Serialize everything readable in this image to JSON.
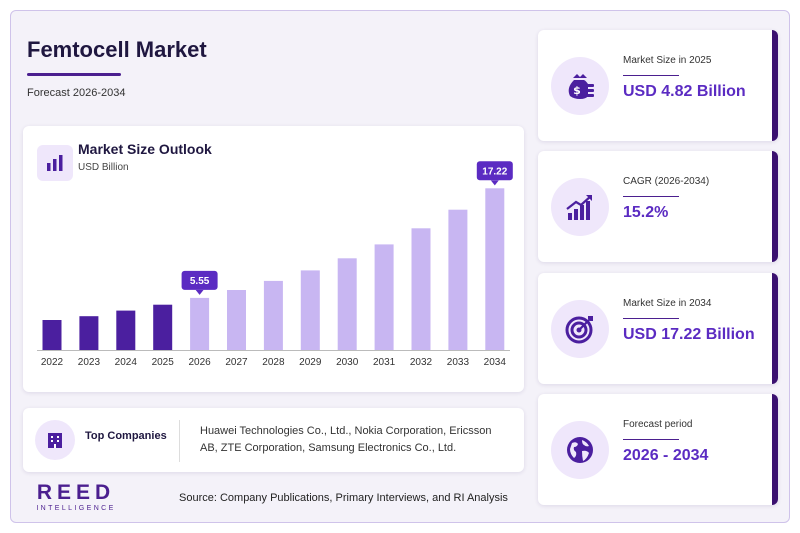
{
  "header": {
    "title": "Femtocell Market",
    "subtitle": "Forecast 2026-2034"
  },
  "chart_card": {
    "title": "Market Size Outlook",
    "unit": "USD Billion",
    "icon": "bar-chart-icon"
  },
  "chart_data": {
    "type": "bar",
    "title": "Market Size Outlook",
    "ylabel": "USD Billion",
    "categories": [
      "2022",
      "2023",
      "2024",
      "2025",
      "2026",
      "2027",
      "2028",
      "2029",
      "2030",
      "2031",
      "2032",
      "2033",
      "2034"
    ],
    "values": [
      3.2,
      3.6,
      4.2,
      4.82,
      5.55,
      6.39,
      7.36,
      8.48,
      9.77,
      11.25,
      12.96,
      14.94,
      17.22
    ],
    "historical_count": 4,
    "callouts": [
      {
        "category": "2026",
        "label": "5.55"
      },
      {
        "category": "2034",
        "label": "17.22"
      }
    ],
    "ylim": [
      0,
      18
    ],
    "grid": false,
    "colors": {
      "historical": "#4b1f9f",
      "forecast": "#c8b6f2",
      "callout": "#5b2bc2"
    }
  },
  "companies": {
    "label": "Top Companies",
    "icon": "building-icon",
    "list": "Huawei Technologies Co., Ltd., Nokia Corporation, Ericsson AB, ZTE Corporation, Samsung Electronics Co., Ltd."
  },
  "stats": [
    {
      "label": "Market Size in 2025",
      "value": "USD 4.82 Billion",
      "icon": "money-bag-icon"
    },
    {
      "label": "CAGR (2026-2034)",
      "value": "15.2%",
      "icon": "growth-chart-icon"
    },
    {
      "label": "Market Size in 2034",
      "value": "USD 17.22 Billion",
      "icon": "target-icon"
    },
    {
      "label": "Forecast period",
      "value": "2026 - 2034",
      "icon": "globe-icon"
    }
  ],
  "footer": {
    "logo_main": "REED",
    "logo_sub": "INTELLIGENCE",
    "source": "Source: Company Publications, Primary Interviews, and RI Analysis"
  },
  "theme": {
    "accent": "#5b2bc2",
    "dark": "#3b1170",
    "light": "#efe7fb"
  }
}
